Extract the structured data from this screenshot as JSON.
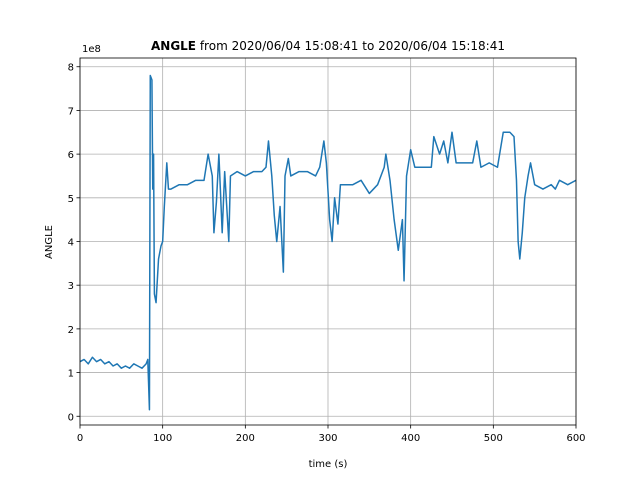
{
  "chart_data": {
    "type": "line",
    "title_bold": "ANGLE",
    "title_rest": " from 2020/06/04 15:08:41 to 2020/06/04 15:18:41",
    "xlabel": "time (s)",
    "ylabel": "ANGLE",
    "y_offset_label": "1e8",
    "xlim": [
      0,
      600
    ],
    "ylim": [
      -0.2,
      8.2
    ],
    "xticks": [
      0,
      100,
      200,
      300,
      400,
      500,
      600
    ],
    "yticks": [
      0,
      1,
      2,
      3,
      4,
      5,
      6,
      7,
      8
    ],
    "grid": true,
    "series": [
      {
        "name": "ANGLE",
        "color": "#1f77b4",
        "x": [
          0,
          5,
          10,
          15,
          20,
          25,
          30,
          35,
          40,
          45,
          50,
          55,
          60,
          65,
          70,
          75,
          80,
          82,
          84,
          85,
          87,
          88,
          89,
          90,
          92,
          95,
          98,
          100,
          102,
          105,
          107,
          110,
          120,
          130,
          140,
          150,
          155,
          160,
          162,
          165,
          168,
          172,
          175,
          180,
          182,
          190,
          200,
          210,
          220,
          225,
          228,
          232,
          235,
          238,
          242,
          246,
          248,
          252,
          255,
          265,
          275,
          285,
          290,
          295,
          298,
          302,
          305,
          308,
          312,
          315,
          320,
          330,
          340,
          350,
          360,
          368,
          370,
          375,
          380,
          385,
          390,
          392,
          395,
          400,
          405,
          410,
          420,
          425,
          428,
          435,
          440,
          445,
          450,
          455,
          465,
          475,
          480,
          485,
          495,
          505,
          512,
          520,
          525,
          528,
          530,
          532,
          535,
          538,
          542,
          545,
          550,
          560,
          570,
          575,
          580,
          590,
          600
        ],
        "values": [
          1.25,
          1.3,
          1.2,
          1.35,
          1.25,
          1.3,
          1.2,
          1.25,
          1.15,
          1.2,
          1.1,
          1.15,
          1.1,
          1.2,
          1.15,
          1.1,
          1.2,
          1.3,
          0.15,
          7.8,
          7.7,
          5.2,
          6.0,
          2.8,
          2.6,
          3.6,
          3.9,
          4.0,
          4.8,
          5.8,
          5.2,
          5.2,
          5.3,
          5.3,
          5.4,
          5.4,
          6.0,
          5.5,
          4.2,
          4.9,
          6.0,
          4.2,
          5.6,
          4.0,
          5.5,
          5.6,
          5.5,
          5.6,
          5.6,
          5.7,
          6.3,
          5.5,
          4.6,
          4.0,
          4.8,
          3.3,
          5.5,
          5.9,
          5.5,
          5.6,
          5.6,
          5.5,
          5.7,
          6.3,
          5.8,
          4.5,
          4.0,
          5.0,
          4.4,
          5.3,
          5.3,
          5.3,
          5.4,
          5.1,
          5.3,
          5.7,
          6.0,
          5.4,
          4.5,
          3.8,
          4.5,
          3.1,
          5.5,
          6.1,
          5.7,
          5.7,
          5.7,
          5.7,
          6.4,
          6.0,
          6.3,
          5.8,
          6.5,
          5.8,
          5.8,
          5.8,
          6.3,
          5.7,
          5.8,
          5.7,
          6.5,
          6.5,
          6.4,
          5.4,
          4.0,
          3.6,
          4.2,
          5.0,
          5.5,
          5.8,
          5.3,
          5.2,
          5.3,
          5.2,
          5.4,
          5.3,
          5.4
        ]
      }
    ]
  }
}
